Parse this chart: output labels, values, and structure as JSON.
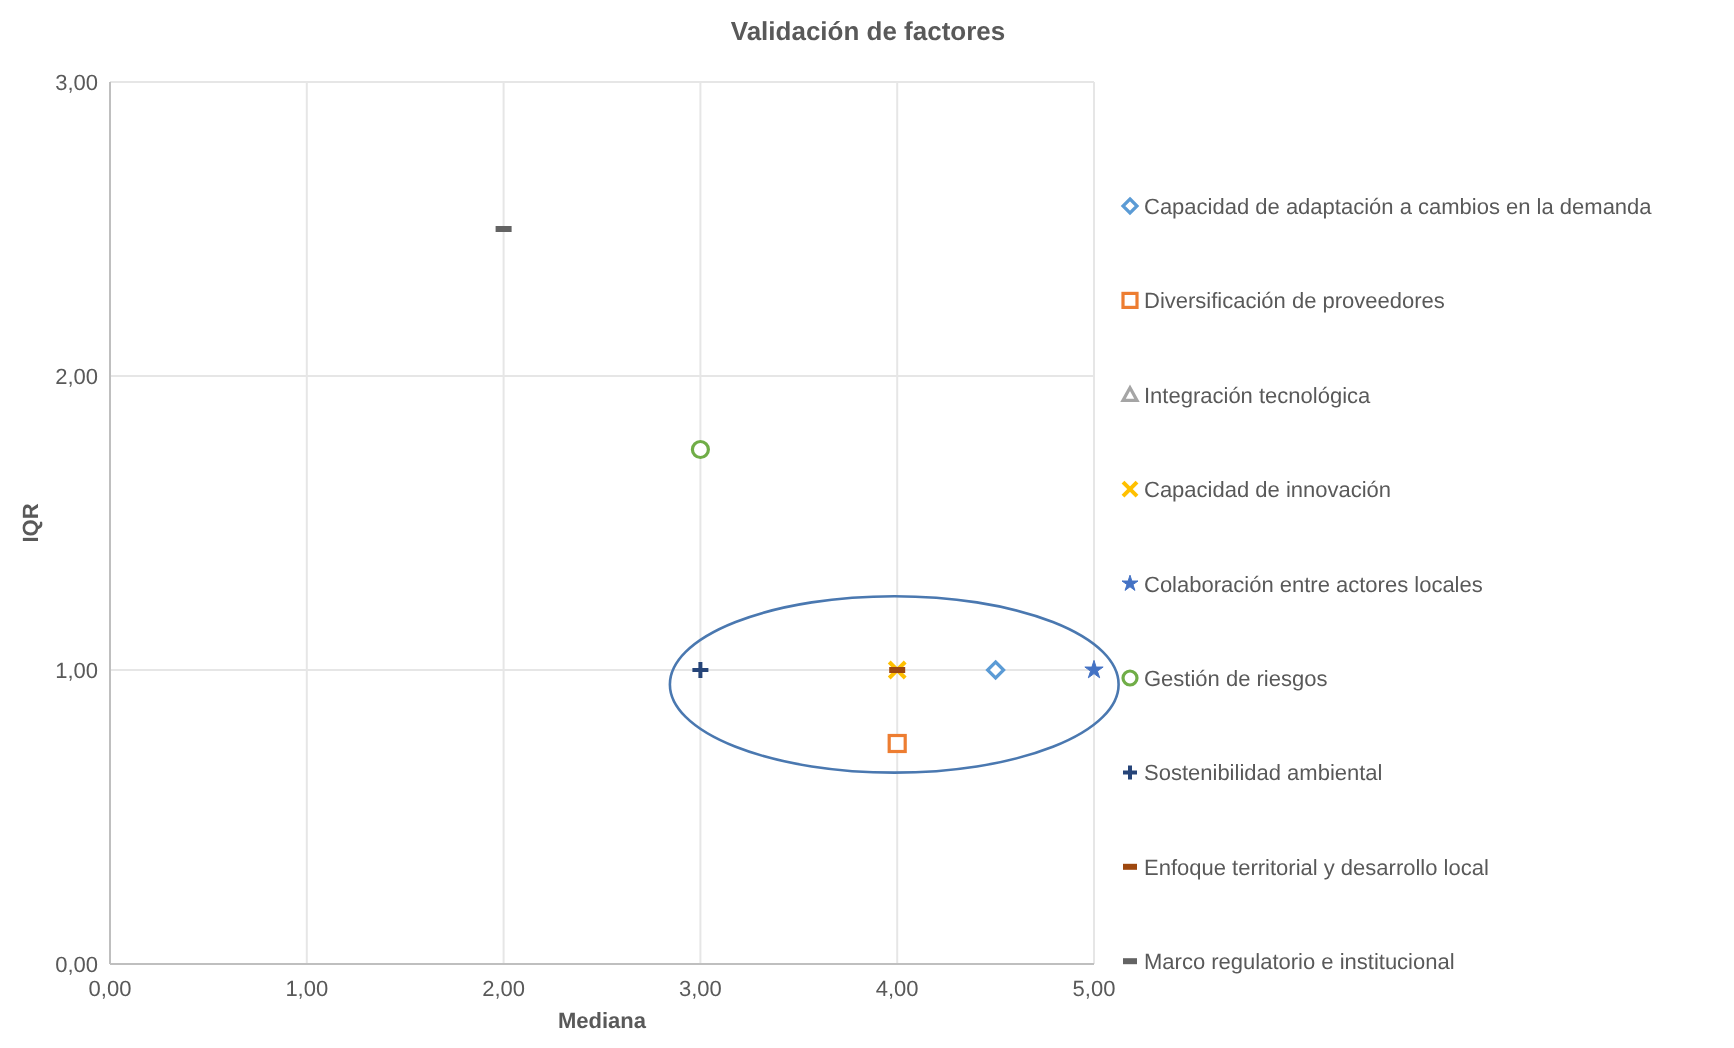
{
  "chart_data": {
    "type": "scatter",
    "title": "Validación de factores",
    "xlabel": "Mediana",
    "ylabel": "IQR",
    "xlim": [
      0,
      5
    ],
    "ylim": [
      0,
      3
    ],
    "xticks": [
      {
        "value": 0,
        "label": "0,00"
      },
      {
        "value": 1,
        "label": "1,00"
      },
      {
        "value": 2,
        "label": "2,00"
      },
      {
        "value": 3,
        "label": "3,00"
      },
      {
        "value": 4,
        "label": "4,00"
      },
      {
        "value": 5,
        "label": "5,00"
      }
    ],
    "yticks": [
      {
        "value": 0,
        "label": "0,00"
      },
      {
        "value": 1,
        "label": "1,00"
      },
      {
        "value": 2,
        "label": "2,00"
      },
      {
        "value": 3,
        "label": "3,00"
      }
    ],
    "grid": true,
    "legend": "right",
    "series": [
      {
        "name": "Capacidad de adaptación a cambios en la demanda",
        "color": "#5b9bd5",
        "marker": "diamond",
        "x": [
          4.5
        ],
        "values": [
          1
        ]
      },
      {
        "name": "Diversificación de proveedores",
        "color": "#ed7d31",
        "marker": "square",
        "x": [
          4
        ],
        "values": [
          0.75
        ]
      },
      {
        "name": "Integración tecnológica",
        "color": "#a5a5a5",
        "marker": "triangle",
        "x": [
          null
        ],
        "values": [
          null
        ]
      },
      {
        "name": "Capacidad de innovación",
        "color": "#ffc000",
        "marker": "cross",
        "x": [
          4
        ],
        "values": [
          1
        ]
      },
      {
        "name": "Colaboración entre actores locales",
        "color": "#4472c4",
        "marker": "star",
        "x": [
          5
        ],
        "values": [
          1
        ]
      },
      {
        "name": "Gestión de riesgos",
        "color": "#70ad47",
        "marker": "circle",
        "x": [
          3
        ],
        "values": [
          1.75
        ]
      },
      {
        "name": "Sostenibilidad ambiental",
        "color": "#264478",
        "marker": "plus",
        "x": [
          3
        ],
        "values": [
          1
        ]
      },
      {
        "name": "Enfoque territorial y desarrollo local",
        "color": "#9e480e",
        "x": [
          4
        ],
        "values": [
          1
        ]
      },
      {
        "name": "Marco regulatorio e institucional",
        "color": "#636363",
        "x": [
          2
        ],
        "values": [
          2.5
        ]
      }
    ]
  }
}
